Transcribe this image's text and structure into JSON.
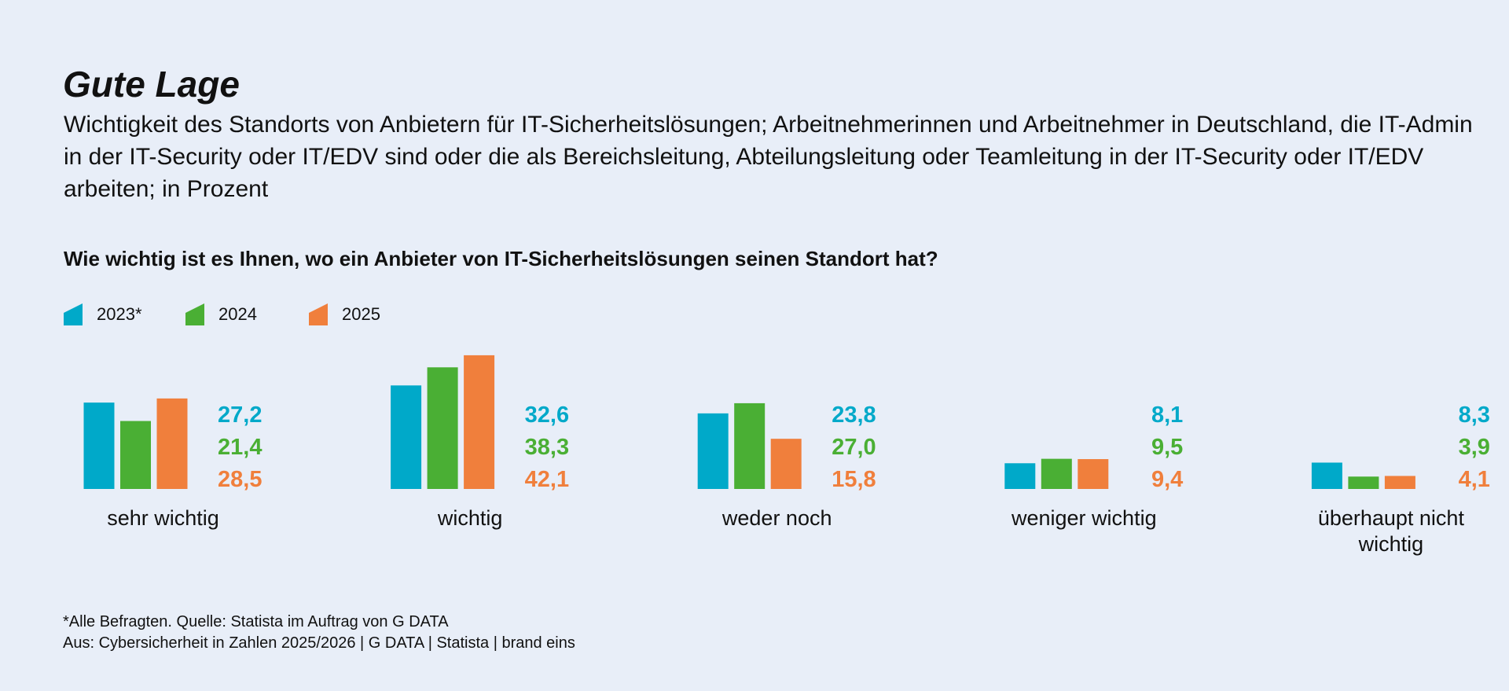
{
  "chart_data": {
    "type": "bar",
    "title": "Gute Lage",
    "subtitle": "Wichtigkeit des Standorts von Anbietern für IT-Sicherheitslösungen; Arbeitnehmerinnen und Arbeitnehmer in Deutschland, die IT-Admin in der IT-Security oder IT/EDV sind oder die als Bereichsleitung, Abteilungsleitung oder Teamleitung in der IT-Security oder IT/EDV arbeiten; in Prozent",
    "question": "Wie wichtig ist es Ihnen, wo ein Anbieter von IT-Sicherheitslösungen seinen Standort hat?",
    "categories": [
      "sehr wichtig",
      "wichtig",
      "weder noch",
      "weniger wichtig",
      "überhaupt nicht wichtig"
    ],
    "series": [
      {
        "name": "2023*",
        "color": "#00a9c9",
        "values": [
          27.2,
          32.6,
          23.8,
          8.1,
          8.3
        ],
        "value_labels": [
          "27,2",
          "32,6",
          "23,8",
          "8,1",
          "8,3"
        ]
      },
      {
        "name": "2024",
        "color": "#4aaf34",
        "values": [
          21.4,
          38.3,
          27.0,
          9.5,
          3.9
        ],
        "value_labels": [
          "21,4",
          "38,3",
          "27,0",
          "9,5",
          "3,9"
        ]
      },
      {
        "name": "2025",
        "color": "#f07f3c",
        "values": [
          28.5,
          42.1,
          15.8,
          9.4,
          4.1
        ],
        "value_labels": [
          "28,5",
          "42,1",
          "15,8",
          "9,4",
          "4,1"
        ]
      }
    ],
    "footnotes": [
      "*Alle Befragten. Quelle: Statista im Auftrag von G DATA",
      "Aus: Cybersicherheit in Zahlen 2025/2026 | G DATA | Statista | brand eins"
    ]
  }
}
